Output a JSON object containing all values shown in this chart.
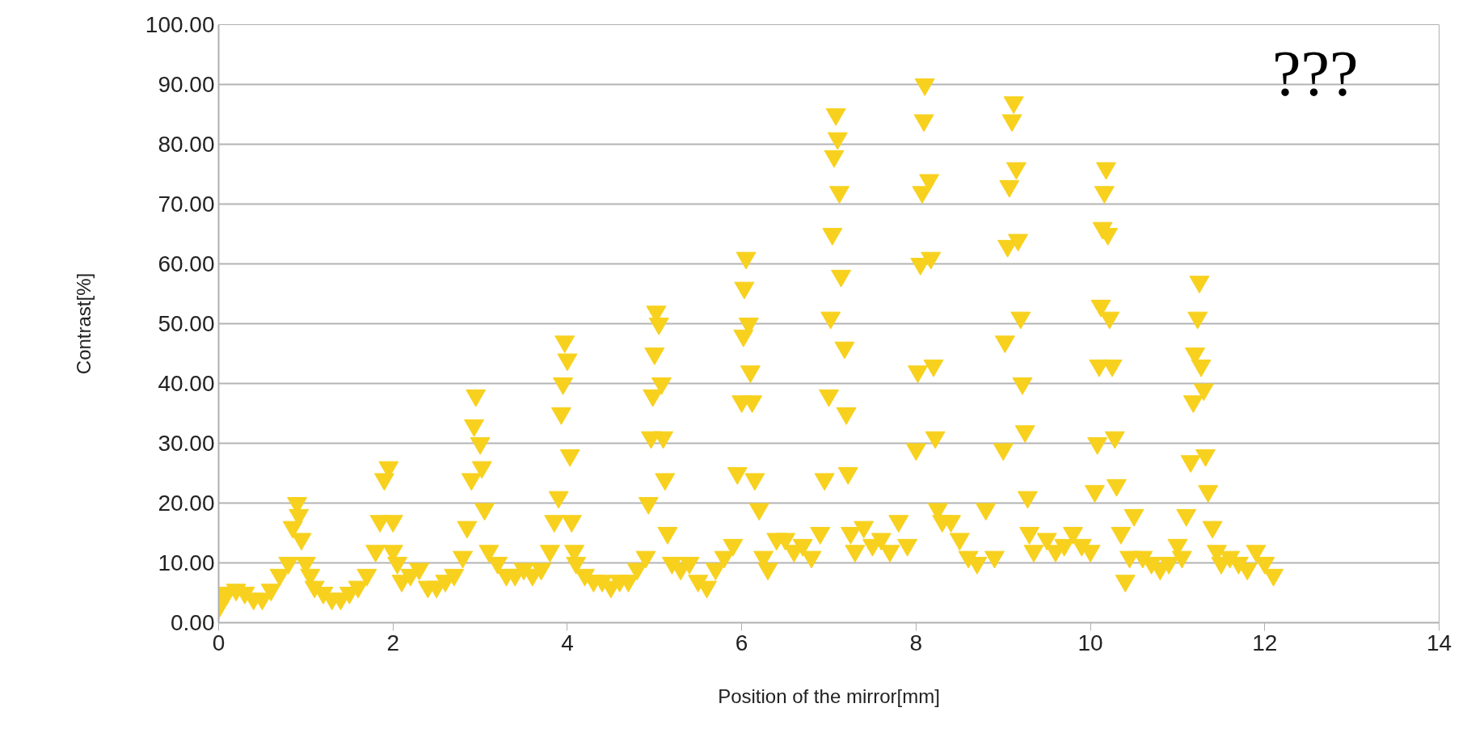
{
  "chart_data": {
    "type": "scatter",
    "xlabel": "Position of the mirror[mm]",
    "ylabel": "Contrast[%]",
    "annotations": [
      "???"
    ],
    "xlim": [
      0,
      14
    ],
    "xticks": [
      0,
      2,
      4,
      6,
      8,
      10,
      12,
      14
    ],
    "ylim": [
      0,
      100
    ],
    "yticks": [
      {
        "value": 0,
        "label": "0.00"
      },
      {
        "value": 10,
        "label": "10.00"
      },
      {
        "value": 20,
        "label": "20.00"
      },
      {
        "value": 30,
        "label": "30.00"
      },
      {
        "value": 40,
        "label": "40.00"
      },
      {
        "value": 50,
        "label": "50.00"
      },
      {
        "value": 60,
        "label": "60.00"
      },
      {
        "value": 70,
        "label": "70.00"
      },
      {
        "value": 80,
        "label": "80.00"
      },
      {
        "value": 90,
        "label": "90.00"
      },
      {
        "value": 100,
        "label": "100.00"
      }
    ],
    "grid": "y",
    "marker": "triangle",
    "series": [
      {
        "color": "#f7d11e",
        "x": [
          0.0,
          0.05,
          0.1,
          0.2,
          0.3,
          0.4,
          0.5,
          0.6,
          0.7,
          0.8,
          0.85,
          0.9,
          0.92,
          0.95,
          1.0,
          1.05,
          1.1,
          1.2,
          1.3,
          1.4,
          1.5,
          1.6,
          1.7,
          1.8,
          1.85,
          1.9,
          1.95,
          2.0,
          2.0,
          2.05,
          2.1,
          2.2,
          2.3,
          2.4,
          2.5,
          2.6,
          2.7,
          2.8,
          2.85,
          2.9,
          2.93,
          2.95,
          3.0,
          3.02,
          3.05,
          3.1,
          3.2,
          3.3,
          3.4,
          3.5,
          3.6,
          3.7,
          3.8,
          3.85,
          3.9,
          3.93,
          3.95,
          3.97,
          4.0,
          4.03,
          4.05,
          4.08,
          4.1,
          4.2,
          4.3,
          4.4,
          4.5,
          4.6,
          4.7,
          4.8,
          4.9,
          4.93,
          4.96,
          4.98,
          5.0,
          5.02,
          5.05,
          5.08,
          5.1,
          5.12,
          5.15,
          5.2,
          5.3,
          5.4,
          5.5,
          5.6,
          5.7,
          5.8,
          5.9,
          5.95,
          6.0,
          6.02,
          6.03,
          6.05,
          6.08,
          6.1,
          6.12,
          6.15,
          6.2,
          6.25,
          6.3,
          6.4,
          6.5,
          6.6,
          6.7,
          6.8,
          6.9,
          6.95,
          7.0,
          7.02,
          7.04,
          7.06,
          7.08,
          7.1,
          7.12,
          7.14,
          7.18,
          7.2,
          7.22,
          7.25,
          7.3,
          7.4,
          7.5,
          7.6,
          7.7,
          7.8,
          7.9,
          8.0,
          8.02,
          8.05,
          8.07,
          8.09,
          8.1,
          8.15,
          8.17,
          8.2,
          8.22,
          8.25,
          8.3,
          8.4,
          8.5,
          8.6,
          8.7,
          8.8,
          8.9,
          9.0,
          9.02,
          9.05,
          9.07,
          9.1,
          9.12,
          9.15,
          9.17,
          9.2,
          9.22,
          9.25,
          9.28,
          9.3,
          9.35,
          9.5,
          9.6,
          9.7,
          9.8,
          9.9,
          10.0,
          10.05,
          10.08,
          10.1,
          10.12,
          10.14,
          10.16,
          10.18,
          10.2,
          10.22,
          10.25,
          10.28,
          10.3,
          10.35,
          10.4,
          10.45,
          10.5,
          10.6,
          10.7,
          10.8,
          10.9,
          11.0,
          11.05,
          11.1,
          11.15,
          11.18,
          11.2,
          11.23,
          11.25,
          11.27,
          11.3,
          11.32,
          11.35,
          11.4,
          11.45,
          11.5,
          11.6,
          11.7,
          11.8,
          11.9,
          12.0,
          12.1
        ],
        "values": [
          2.5,
          4.5,
          5,
          5.5,
          5,
          4,
          4,
          5.5,
          8,
          10,
          16,
          20,
          18,
          14,
          10,
          8,
          6,
          5,
          4,
          4,
          5,
          6,
          8,
          12,
          17,
          24,
          26,
          17,
          12,
          10,
          7,
          8,
          9,
          6,
          6,
          7,
          8,
          11,
          16,
          24,
          33,
          38,
          30,
          26,
          19,
          12,
          10,
          8,
          8,
          9,
          8,
          9,
          12,
          17,
          21,
          35,
          40,
          47,
          44,
          28,
          17,
          12,
          10,
          8,
          7,
          7,
          6,
          7,
          7,
          9,
          11,
          20,
          31,
          38,
          45,
          52,
          50,
          40,
          31,
          24,
          15,
          10,
          9,
          10,
          7,
          6,
          9,
          11,
          13,
          25,
          37,
          48,
          56,
          61,
          50,
          42,
          37,
          24,
          19,
          11,
          9,
          14,
          14,
          12,
          13,
          11,
          15,
          24,
          38,
          51,
          65,
          78,
          85,
          81,
          72,
          58,
          46,
          35,
          25,
          15,
          12,
          16,
          13,
          14,
          12,
          17,
          13,
          29,
          42,
          60,
          72,
          84,
          90,
          74,
          61,
          43,
          31,
          19,
          17,
          17,
          14,
          11,
          10,
          19,
          11,
          29,
          47,
          63,
          73,
          84,
          87,
          76,
          64,
          51,
          40,
          32,
          21,
          15,
          12,
          14,
          12,
          13,
          15,
          13,
          12,
          22,
          30,
          43,
          53,
          66,
          72,
          76,
          65,
          51,
          43,
          31,
          23,
          15,
          7,
          11,
          18,
          11,
          10,
          9,
          10,
          13,
          11,
          18,
          27,
          37,
          45,
          51,
          57,
          43,
          39,
          28,
          22,
          16,
          12,
          10,
          11,
          10,
          9,
          12,
          10,
          8
        ]
      }
    ]
  }
}
